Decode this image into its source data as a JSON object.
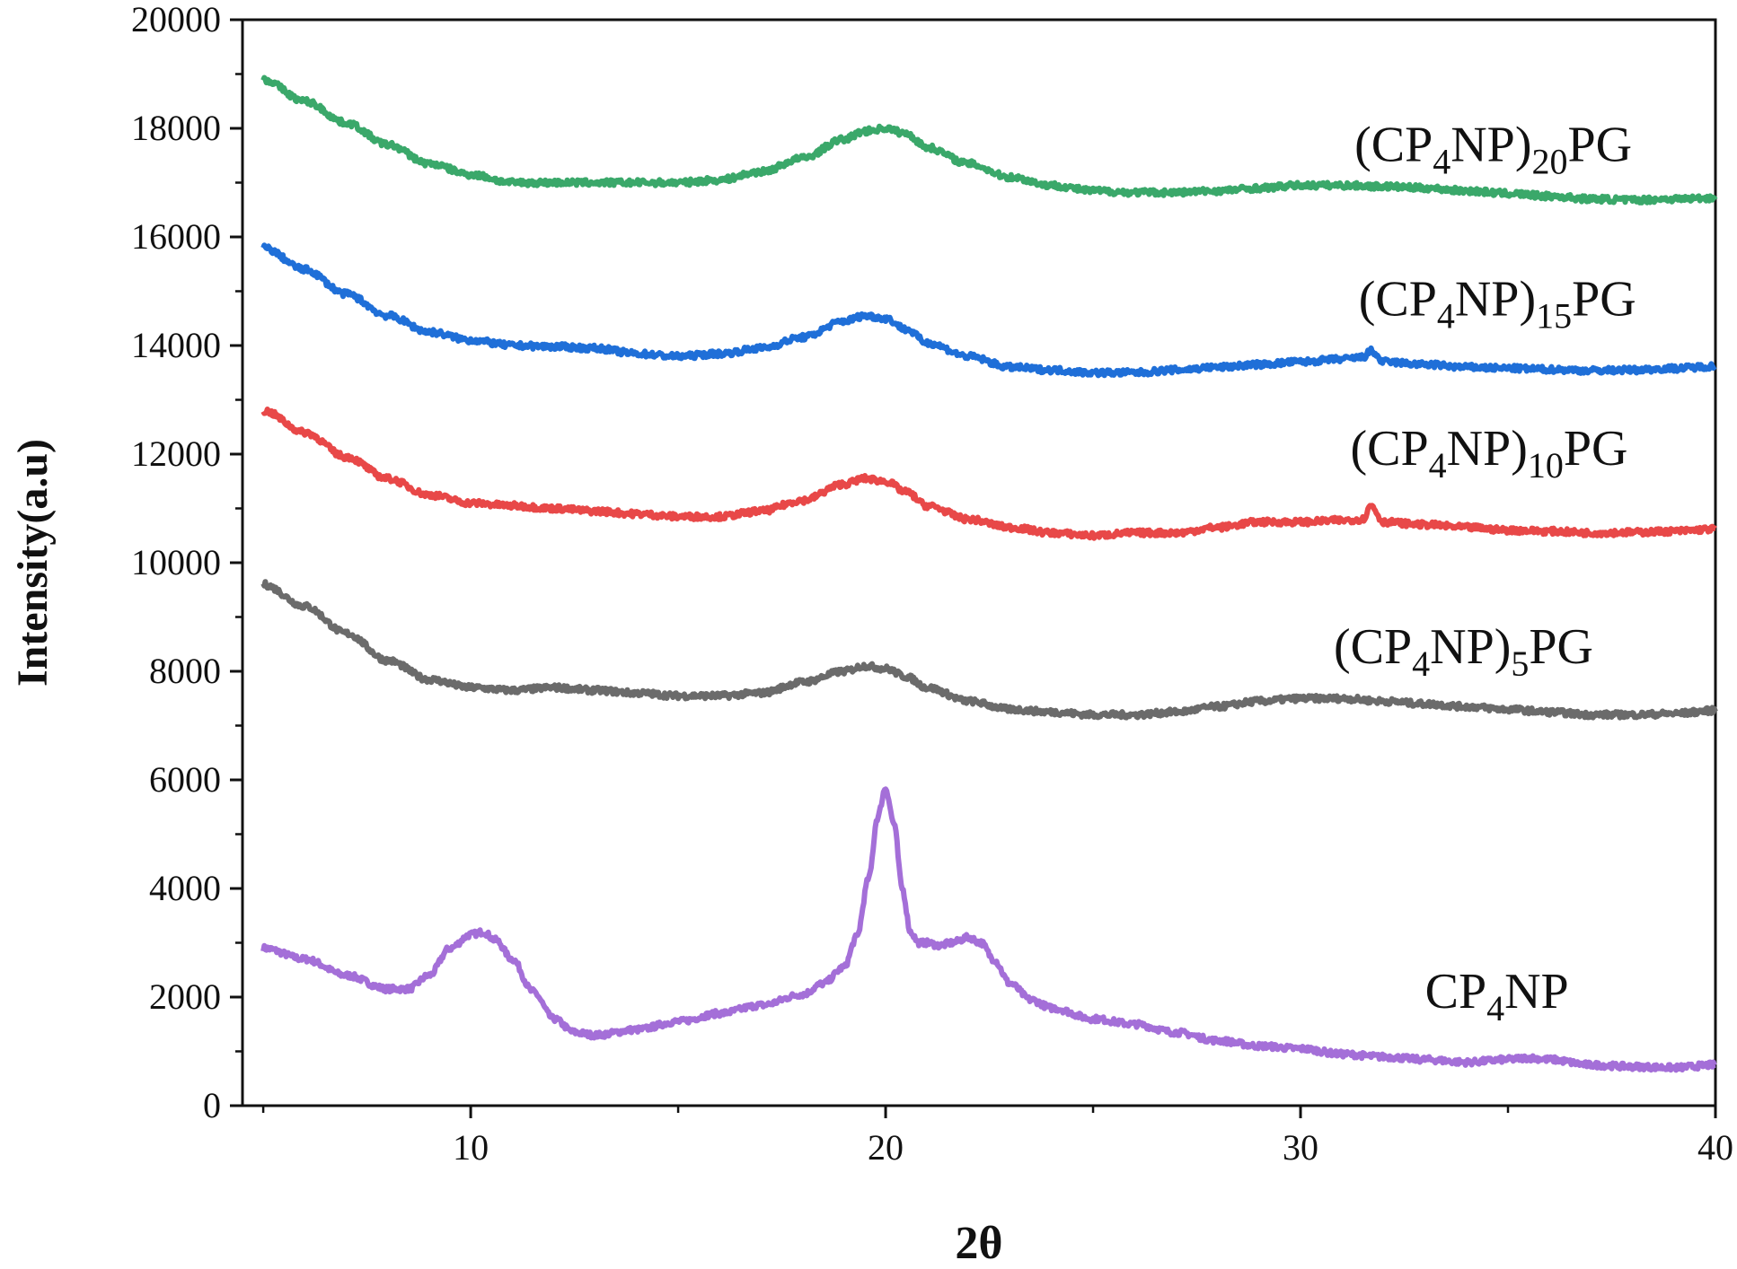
{
  "chart_data": {
    "type": "line",
    "title": "",
    "xlabel": "2θ",
    "ylabel": "Intensity(a.u)",
    "xlim": [
      4.5,
      40
    ],
    "ylim": [
      0,
      20000
    ],
    "x_ticks": [
      10,
      20,
      30,
      40
    ],
    "y_ticks": [
      0,
      2000,
      4000,
      6000,
      8000,
      10000,
      12000,
      14000,
      16000,
      18000,
      20000
    ],
    "grid": false,
    "legend": "none (inline labels at right)",
    "series": [
      {
        "name": "CP4NP",
        "label_parts": [
          "CP",
          "4",
          "NP",
          "",
          ""
        ],
        "color": "#a46fd8",
        "label_pos": [
          33,
          1800
        ],
        "x": [
          5,
          6,
          7,
          8,
          8.5,
          9,
          9.5,
          10,
          10.3,
          10.6,
          11,
          11.5,
          12,
          12.5,
          13,
          14,
          15,
          16,
          17,
          18,
          18.5,
          19,
          19.3,
          19.6,
          19.8,
          20,
          20.2,
          20.4,
          20.6,
          20.8,
          21,
          21.3,
          21.6,
          22,
          22.3,
          22.6,
          23,
          23.5,
          24,
          25,
          26,
          27,
          28,
          29,
          30,
          31,
          32,
          33,
          34,
          35,
          35.5,
          36,
          37,
          38,
          39,
          40
        ],
        "values": [
          2900,
          2700,
          2400,
          2150,
          2150,
          2400,
          2900,
          3150,
          3200,
          3050,
          2700,
          2100,
          1600,
          1350,
          1300,
          1400,
          1550,
          1700,
          1850,
          2050,
          2250,
          2550,
          3100,
          4200,
          5300,
          5850,
          5200,
          4000,
          3200,
          3000,
          3000,
          2950,
          3000,
          3100,
          3000,
          2700,
          2250,
          1950,
          1800,
          1600,
          1500,
          1350,
          1200,
          1100,
          1050,
          950,
          900,
          850,
          800,
          850,
          880,
          850,
          750,
          720,
          700,
          750
        ]
      },
      {
        "name": "(CP4NP)5PG",
        "label_parts": [
          "(CP",
          "4",
          "NP)",
          "5",
          "PG"
        ],
        "color": "#6b6b6b",
        "label_pos": [
          30.8,
          8150
        ],
        "x": [
          5,
          6,
          7,
          8,
          9,
          10,
          11,
          12,
          13,
          14,
          15,
          16,
          17,
          18,
          19,
          19.5,
          20,
          20.5,
          21,
          22,
          23,
          24,
          25,
          26,
          27,
          28,
          29,
          30,
          31,
          32,
          33,
          34,
          35,
          36,
          37,
          38,
          39,
          40
        ],
        "values": [
          9600,
          9200,
          8700,
          8200,
          7850,
          7700,
          7650,
          7700,
          7650,
          7600,
          7550,
          7550,
          7600,
          7800,
          8000,
          8100,
          8050,
          7900,
          7700,
          7450,
          7300,
          7250,
          7200,
          7200,
          7250,
          7350,
          7450,
          7500,
          7500,
          7450,
          7400,
          7350,
          7300,
          7250,
          7200,
          7200,
          7220,
          7280
        ]
      },
      {
        "name": "(CP4NP)10PG",
        "label_parts": [
          "(CP",
          "4",
          "NP)",
          "10",
          "PG"
        ],
        "color": "#e84848",
        "label_pos": [
          31.2,
          11800
        ],
        "x": [
          5,
          6,
          7,
          8,
          9,
          10,
          11,
          12,
          13,
          14,
          15,
          16,
          17,
          18,
          19,
          19.5,
          20,
          20.5,
          21,
          22,
          23,
          24,
          25,
          26,
          27,
          28,
          29,
          30,
          31,
          31.5,
          31.7,
          32,
          33,
          34,
          35,
          36,
          37,
          38,
          39,
          40
        ],
        "values": [
          12800,
          12400,
          11950,
          11550,
          11250,
          11100,
          11050,
          11000,
          10950,
          10900,
          10850,
          10850,
          10950,
          11150,
          11450,
          11550,
          11500,
          11300,
          11050,
          10800,
          10650,
          10550,
          10500,
          10550,
          10550,
          10650,
          10750,
          10750,
          10780,
          10800,
          11050,
          10750,
          10700,
          10650,
          10600,
          10580,
          10550,
          10560,
          10580,
          10620
        ]
      },
      {
        "name": "(CP4NP)15PG",
        "label_parts": [
          "(CP",
          "4",
          "NP)",
          "15",
          "PG"
        ],
        "color": "#1f6fd8",
        "label_pos": [
          31.4,
          14550
        ],
        "x": [
          5,
          6,
          7,
          8,
          9,
          10,
          11,
          12,
          13,
          14,
          15,
          16,
          17,
          18,
          19,
          19.5,
          20,
          20.5,
          21,
          22,
          23,
          24,
          25,
          26,
          27,
          28,
          29,
          30,
          31,
          31.5,
          31.7,
          32,
          33,
          34,
          35,
          36,
          37,
          38,
          39,
          40
        ],
        "values": [
          15800,
          15400,
          14950,
          14550,
          14250,
          14100,
          14000,
          13980,
          13950,
          13850,
          13800,
          13850,
          13950,
          14150,
          14450,
          14550,
          14500,
          14300,
          14050,
          13800,
          13600,
          13550,
          13500,
          13500,
          13550,
          13600,
          13650,
          13700,
          13750,
          13780,
          13900,
          13700,
          13650,
          13600,
          13580,
          13560,
          13540,
          13550,
          13580,
          13620
        ]
      },
      {
        "name": "(CP4NP)20PG",
        "label_parts": [
          "(CP",
          "4",
          "NP)",
          "20",
          "PG"
        ],
        "color": "#3aa86a",
        "label_pos": [
          31.3,
          17400
        ],
        "x": [
          5,
          6,
          7,
          8,
          9,
          10,
          11,
          12,
          13,
          14,
          15,
          16,
          17,
          18,
          19,
          19.5,
          20,
          20.5,
          21,
          22,
          23,
          24,
          25,
          26,
          27,
          28,
          29,
          30,
          31,
          32,
          33,
          34,
          35,
          36,
          37,
          38,
          39,
          40
        ],
        "values": [
          18900,
          18500,
          18100,
          17700,
          17350,
          17150,
          17000,
          17000,
          17000,
          17000,
          17000,
          17050,
          17200,
          17450,
          17800,
          17950,
          18000,
          17900,
          17650,
          17350,
          17100,
          16950,
          16850,
          16820,
          16820,
          16850,
          16900,
          16950,
          16950,
          16930,
          16900,
          16850,
          16800,
          16750,
          16700,
          16680,
          16700,
          16720
        ]
      }
    ]
  }
}
